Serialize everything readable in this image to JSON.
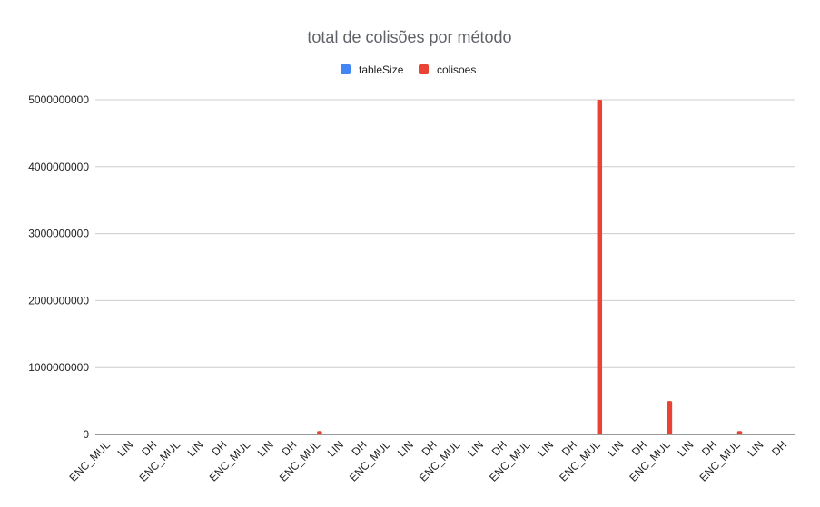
{
  "chart_data": {
    "type": "bar",
    "title": "total de colisões por método",
    "xlabel": "",
    "ylabel": "",
    "legend_position": "top",
    "grid": true,
    "ylim": [
      0,
      5000000000
    ],
    "yticks": [
      0,
      1000000000,
      2000000000,
      3000000000,
      4000000000,
      5000000000
    ],
    "ytick_labels": [
      "0",
      "1000000000",
      "2000000000",
      "3000000000",
      "4000000000",
      "5000000000"
    ],
    "categories": [
      "ENC_MUL",
      "LIN",
      "DH",
      "ENC_MUL",
      "LIN",
      "DH",
      "ENC_MUL",
      "LIN",
      "DH",
      "ENC_MUL",
      "LIN",
      "DH",
      "ENC_MUL",
      "LIN",
      "DH",
      "ENC_MUL",
      "LIN",
      "DH",
      "ENC_MUL",
      "LIN",
      "DH",
      "ENC_MUL",
      "LIN",
      "DH",
      "ENC_MUL",
      "LIN",
      "DH",
      "ENC_MUL",
      "LIN",
      "DH"
    ],
    "series": [
      {
        "name": "tableSize",
        "color": "#4285f4",
        "values": [
          0,
          0,
          0,
          0,
          0,
          0,
          0,
          0,
          0,
          0,
          0,
          0,
          0,
          0,
          0,
          0,
          0,
          0,
          0,
          0,
          0,
          0,
          0,
          0,
          0,
          0,
          0,
          0,
          0,
          0
        ]
      },
      {
        "name": "colisoes",
        "color": "#ea4335",
        "values": [
          0,
          0,
          0,
          0,
          0,
          0,
          0,
          0,
          0,
          50000000,
          0,
          0,
          0,
          0,
          0,
          0,
          0,
          0,
          0,
          0,
          0,
          5000000000,
          0,
          0,
          500000000,
          0,
          0,
          50000000,
          0,
          0
        ]
      }
    ]
  }
}
